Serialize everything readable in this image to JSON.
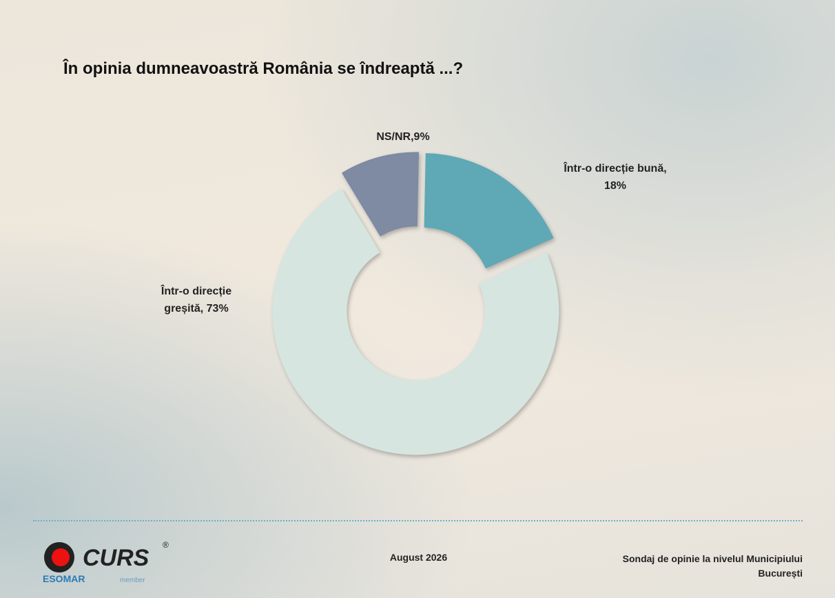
{
  "chart_data": {
    "type": "donut",
    "title": "În opinia dumneavoastră România se îndreaptă ...?",
    "labels": [
      "Într-o direcție bună, 18%",
      "Într-o direcție greșită, 73%",
      "NS/NR,9%"
    ],
    "values": [
      18,
      73,
      9
    ],
    "colors": [
      "#5fa8b5",
      "#d6e5df",
      "#7f8aa3"
    ]
  },
  "footer": {
    "logo": "CURS",
    "registered": "®",
    "esomar": "ESOMAR",
    "member": "member",
    "date": "August 2026",
    "survey": "Sondaj de opinie la nivelul Municipiului București"
  }
}
